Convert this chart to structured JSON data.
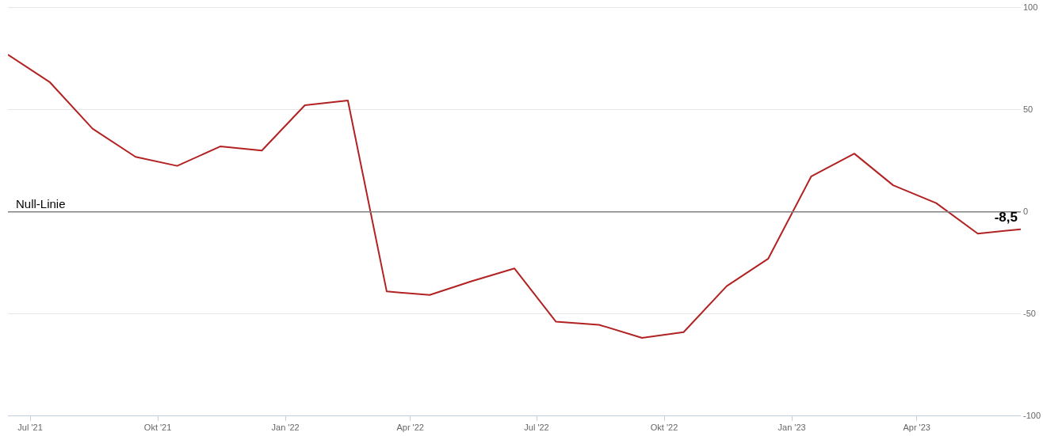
{
  "chart_data": {
    "type": "line",
    "x": [
      "2021-06-15",
      "2021-07-15",
      "2021-08-15",
      "2021-09-15",
      "2021-10-15",
      "2021-11-15",
      "2021-12-15",
      "2022-01-15",
      "2022-02-15",
      "2022-03-15",
      "2022-04-15",
      "2022-05-15",
      "2022-06-15",
      "2022-07-15",
      "2022-08-15",
      "2022-09-15",
      "2022-10-15",
      "2022-11-15",
      "2022-12-15",
      "2023-01-15",
      "2023-02-15",
      "2023-03-15",
      "2023-04-15",
      "2023-05-15",
      "2023-06-15"
    ],
    "series": [
      {
        "color": "#b22222",
        "values": [
          77,
          63.6,
          40.7,
          26.9,
          22.5,
          32,
          30,
          52.2,
          54.5,
          -39,
          -40.7,
          -34,
          -27.7,
          -53.8,
          -55.3,
          -61.7,
          -58.9,
          -36.4,
          -22.9,
          17.4,
          28.5,
          13,
          4.3,
          -10.7,
          -8.5
        ],
        "value_labels": [
          null,
          null,
          null,
          null,
          null,
          null,
          null,
          null,
          null,
          null,
          null,
          null,
          null,
          null,
          null,
          null,
          null,
          null,
          null,
          null,
          null,
          null,
          null,
          null,
          "-8,5"
        ]
      }
    ],
    "xlim": [
      "2021-06-15",
      "2023-06-15"
    ],
    "xticks": [
      {
        "value": "2021-07-01",
        "label": "Jul '21"
      },
      {
        "value": "2021-10-01",
        "label": "Okt '21"
      },
      {
        "value": "2022-01-01",
        "label": "Jan '22"
      },
      {
        "value": "2022-04-01",
        "label": "Apr '22"
      },
      {
        "value": "2022-07-01",
        "label": "Jul '22"
      },
      {
        "value": "2022-10-01",
        "label": "Okt '22"
      },
      {
        "value": "2023-01-01",
        "label": "Jan '23"
      },
      {
        "value": "2023-04-01",
        "label": "Apr '23"
      }
    ],
    "ylim": [
      -100,
      100
    ],
    "yticks": [
      -100,
      -50,
      0,
      50,
      100
    ],
    "ref_lines": [
      {
        "axis": "y",
        "value": 0,
        "label": "Null-Linie",
        "color": "#808080"
      }
    ],
    "grid": "y",
    "legend": false,
    "marker": "none",
    "line_style": "solid"
  }
}
